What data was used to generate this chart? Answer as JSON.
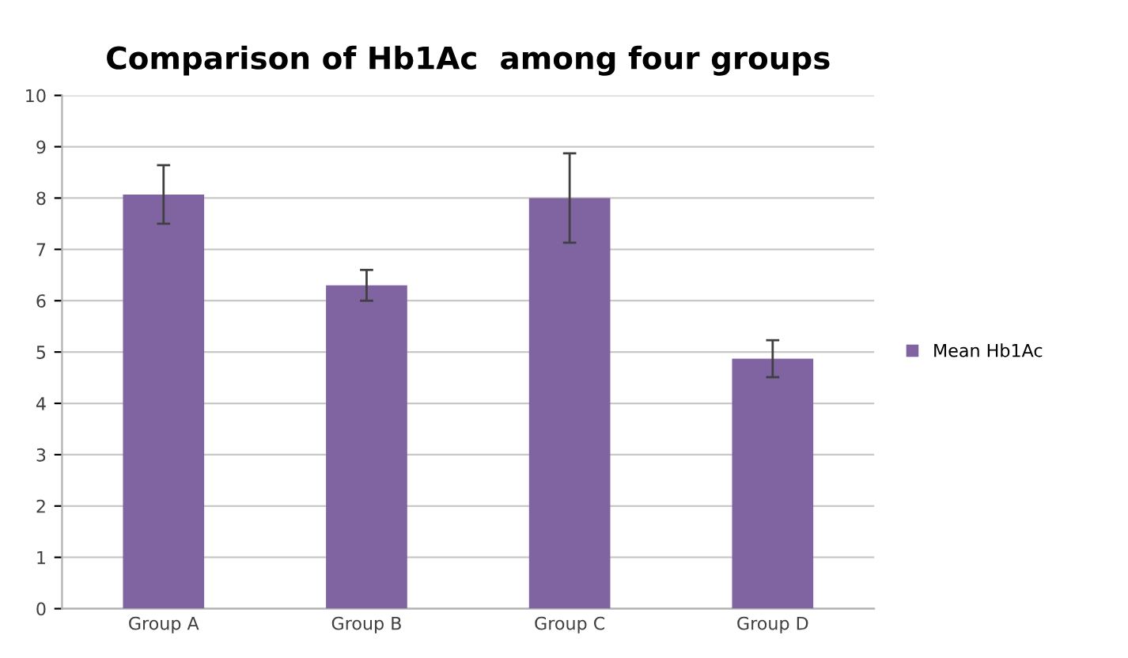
{
  "chart_data": {
    "type": "bar",
    "title": "Comparison of Hb1Ac  among four groups",
    "categories": [
      "Group A",
      "Group B",
      "Group C",
      "Group D"
    ],
    "series": [
      {
        "name": "Mean Hb1Ac",
        "color": "#8064a2",
        "values": [
          8.07,
          6.3,
          8.0,
          4.87
        ],
        "errors": [
          0.57,
          0.3,
          0.87,
          0.36
        ]
      }
    ],
    "ylim": [
      0,
      10
    ],
    "yticks": [
      0,
      1,
      2,
      3,
      4,
      5,
      6,
      7,
      8,
      9,
      10
    ],
    "grid": "y",
    "legend": "right"
  }
}
